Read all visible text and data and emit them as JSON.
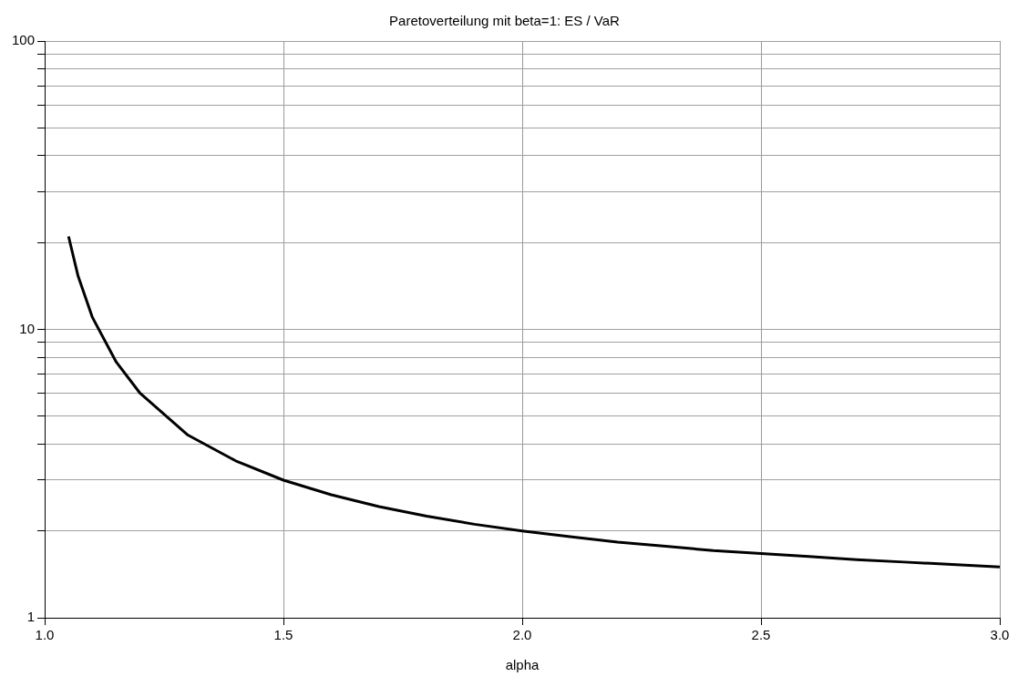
{
  "chart_data": {
    "type": "line",
    "title": "Paretoverteilung mit beta=1: ES / VaR",
    "xlabel": "alpha",
    "x": [
      1.05,
      1.07,
      1.1,
      1.15,
      1.2,
      1.3,
      1.4,
      1.5,
      1.6,
      1.7,
      1.8,
      1.9,
      2.0,
      2.1,
      2.2,
      2.3,
      2.4,
      2.5,
      2.6,
      2.7,
      2.8,
      2.9,
      3.0
    ],
    "series": [
      {
        "color": "#000000",
        "values": [
          21,
          15.3,
          11,
          7.7,
          6,
          4.3,
          3.5,
          3,
          2.67,
          2.43,
          2.25,
          2.11,
          2,
          1.91,
          1.83,
          1.77,
          1.71,
          1.67,
          1.63,
          1.59,
          1.56,
          1.53,
          1.5
        ]
      }
    ],
    "xlim": [
      1,
      3
    ],
    "xticks": [
      {
        "value": 1,
        "label": "1.0"
      },
      {
        "value": 1.5,
        "label": "1.5"
      },
      {
        "value": 2,
        "label": "2.0"
      },
      {
        "value": 2.5,
        "label": "2.5"
      },
      {
        "value": 3,
        "label": "3.0"
      }
    ],
    "ylim": [
      1,
      100
    ],
    "yticks": [
      1,
      {
        "value": 2,
        "label": null
      },
      {
        "value": 3,
        "label": null
      },
      {
        "value": 4,
        "label": null
      },
      {
        "value": 5,
        "label": null
      },
      {
        "value": 6,
        "label": null
      },
      {
        "value": 7,
        "label": null
      },
      {
        "value": 8,
        "label": null
      },
      {
        "value": 9,
        "label": null
      },
      10,
      {
        "value": 20,
        "label": null
      },
      {
        "value": 30,
        "label": null
      },
      {
        "value": 40,
        "label": null
      },
      {
        "value": 50,
        "label": null
      },
      {
        "value": 60,
        "label": null
      },
      {
        "value": 70,
        "label": null
      },
      {
        "value": 80,
        "label": null
      },
      {
        "value": 90,
        "label": null
      },
      100
    ],
    "log": "y",
    "grid": true,
    "legend": false,
    "marker": "none",
    "line_style": "solid"
  }
}
